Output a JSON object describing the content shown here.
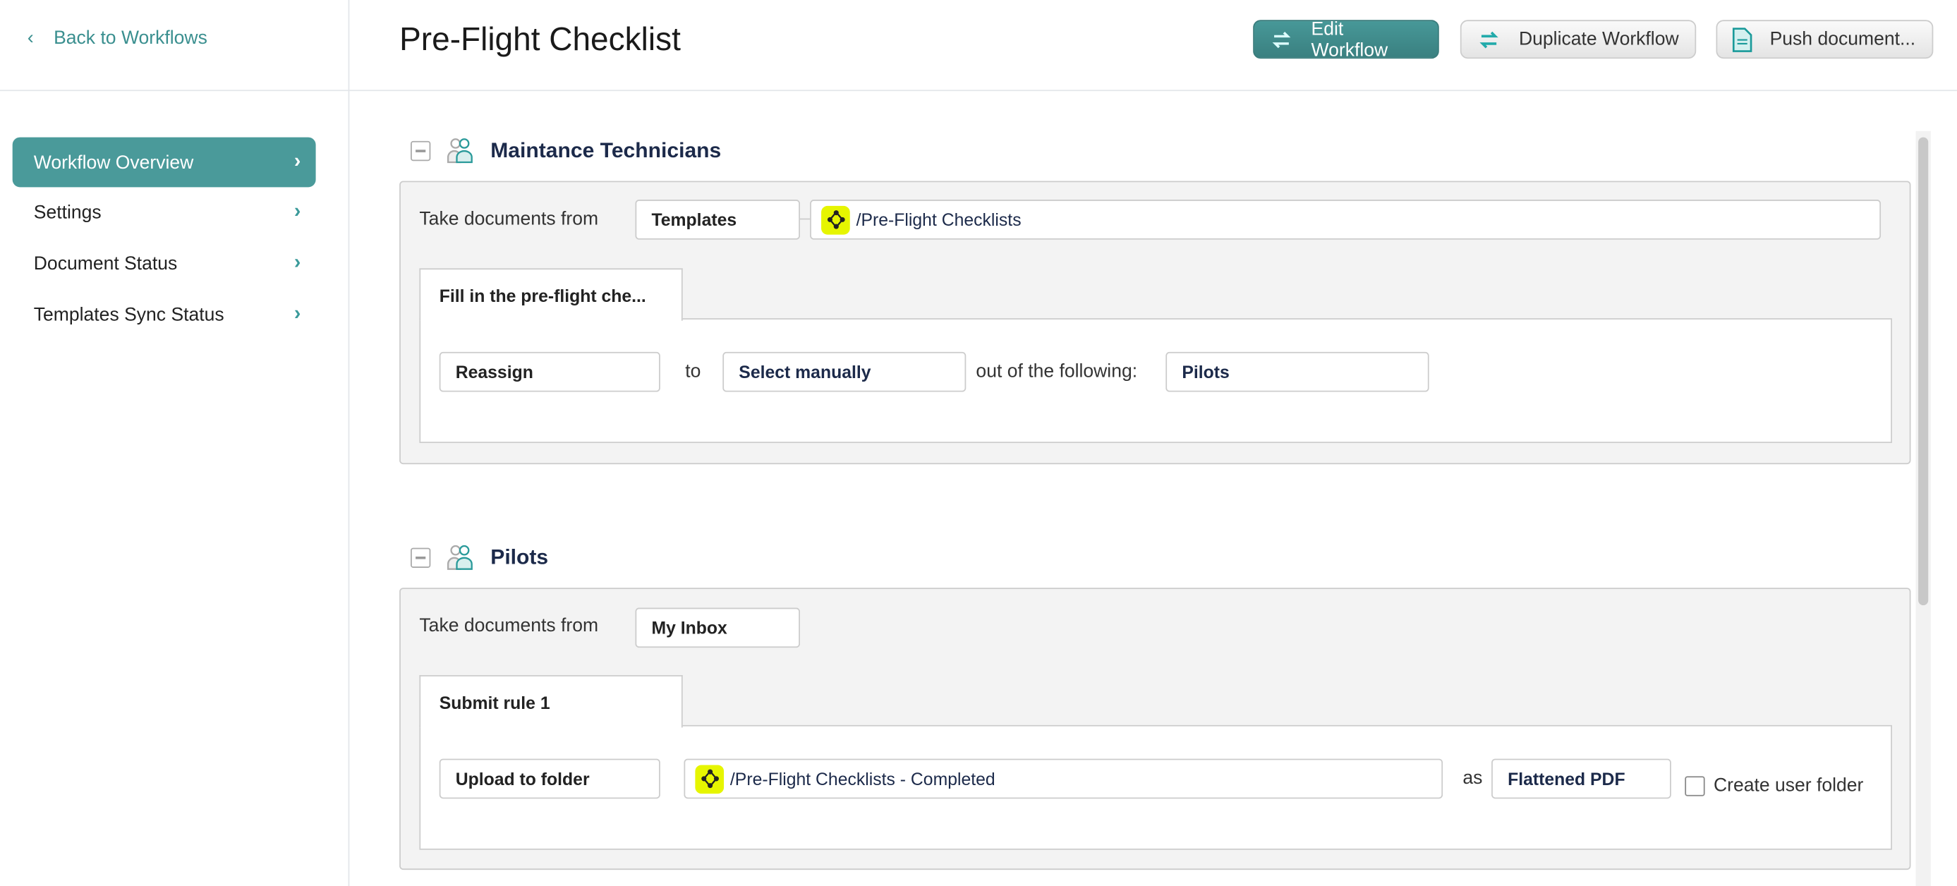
{
  "sidebar": {
    "back_label": "Back to Workflows",
    "items": [
      {
        "label": "Workflow Overview",
        "active": true
      },
      {
        "label": "Settings"
      },
      {
        "label": "Document Status"
      },
      {
        "label": "Templates Sync Status"
      }
    ]
  },
  "header": {
    "title": "Pre-Flight Checklist",
    "buttons": {
      "edit": "Edit Workflow",
      "duplicate": "Duplicate Workflow",
      "push": "Push document..."
    }
  },
  "colors": {
    "accent": "#4a9a9a",
    "folder_icon": "#e6f500",
    "heading": "#1c2a4a"
  },
  "sections": [
    {
      "title": "Maintance Technicians",
      "take_label": "Take documents from",
      "source": "Templates",
      "path": "/Pre-Flight Checklists",
      "tab": "Fill in the pre-flight che...",
      "action": "Reassign",
      "to_label": "to",
      "assign_mode": "Select manually",
      "out_label": "out of the following:",
      "group": "Pilots"
    },
    {
      "title": "Pilots",
      "take_label": "Take documents from",
      "source": "My Inbox",
      "tab": "Submit rule 1",
      "action": "Upload to folder",
      "path": "/Pre-Flight Checklists - Completed",
      "as_label": "as",
      "format": "Flattened PDF",
      "checkbox_label": "Create user folder",
      "checkbox_checked": false
    }
  ]
}
